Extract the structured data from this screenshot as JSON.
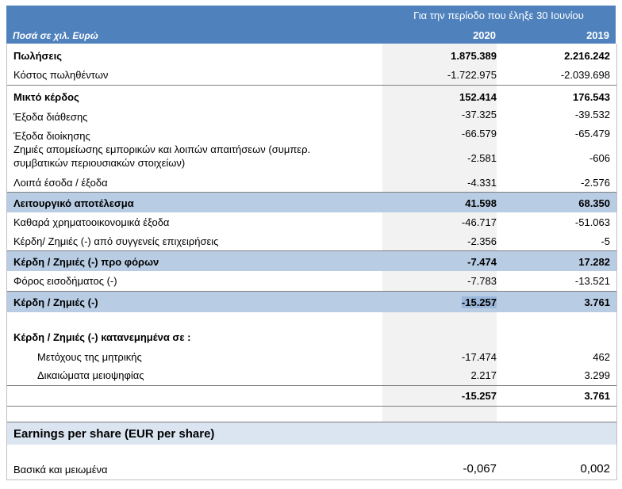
{
  "header": {
    "period": "Για την περίοδο που έληξε 30 Ιουνίου",
    "unit": "Ποσά σε χιλ. Ευρώ",
    "year_2020": "2020",
    "year_2019": "2019"
  },
  "rows": [
    {
      "label": "Πωλήσεις",
      "v2020": "1.875.389",
      "v2019": "2.216.242"
    },
    {
      "label": "Κόστος πωληθέντων",
      "v2020": "-1.722.975",
      "v2019": "-2.039.698"
    },
    {
      "label": "Μικτό κέρδος",
      "v2020": "152.414",
      "v2019": "176.543"
    },
    {
      "label": "Έξοδα διάθεσης",
      "v2020": "-37.325",
      "v2019": "-39.532"
    },
    {
      "label": "Έξοδα διοίκησης",
      "v2020": "-66.579",
      "v2019": "-65.479"
    },
    {
      "label": "Ζημιές απομείωσης εμπορικών και λοιπών απαιτήσεων (συμπερ.",
      "label2": "συμβατικών περιουσιακών στοιχείων)",
      "v2020": "-2.581",
      "v2019": "-606"
    },
    {
      "label": "Λοιπά έσοδα / έξοδα",
      "v2020": "-4.331",
      "v2019": "-2.576"
    },
    {
      "label": "Λειτουργικό αποτέλεσμα",
      "v2020": "41.598",
      "v2019": "68.350"
    },
    {
      "label": "Καθαρά χρηματοοικονομικά έξοδα",
      "v2020": "-46.717",
      "v2019": "-51.063"
    },
    {
      "label": "Κέρδη/ Ζημιές (-) από συγγενείς επιχειρήσεις",
      "v2020": "-2.356",
      "v2019": "-5"
    },
    {
      "label": "Κέρδη / Ζημιές (-) προ φόρων",
      "v2020": "-7.474",
      "v2019": "17.282"
    },
    {
      "label": "Φόρος εισοδήματος (-)",
      "v2020": "-7.783",
      "v2019": "-13.521"
    },
    {
      "label": "Κέρδη / Ζημιές (-)",
      "v2020": "-15.257",
      "v2019": "3.761"
    },
    {
      "label": "Κέρδη / Ζημιές (-) κατανεμημένα σε :"
    },
    {
      "label": "Μετόχους της μητρικής",
      "v2020": "-17.474",
      "v2019": "462"
    },
    {
      "label": "Δικαιώματα μειοψηφίας",
      "v2020": "2.217",
      "v2019": "3.299"
    },
    {
      "v2020": "-15.257",
      "v2019": "3.761"
    },
    {
      "label": "Earnings per share (EUR per share)"
    },
    {
      "label": "Βασικά και μειωμένα",
      "v2020": "-0,067",
      "v2019": "0,002"
    }
  ]
}
